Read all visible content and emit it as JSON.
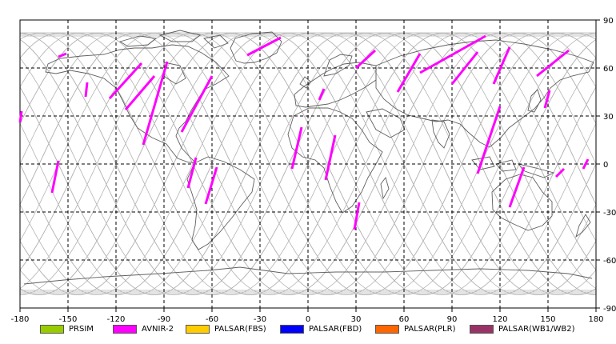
{
  "x_ticks": [
    -180,
    -150,
    -120,
    -90,
    -60,
    -30,
    0,
    30,
    60,
    90,
    120,
    150,
    180
  ],
  "y_ticks": [
    90,
    60,
    30,
    0,
    -30,
    -60,
    -90
  ],
  "colors": {
    "grid": "#000000",
    "orbit": "#b4b4b4",
    "coast": "#606060",
    "swath": "#ff00ff"
  },
  "legend": [
    {
      "label": "PRSIM",
      "color": "#99cc00"
    },
    {
      "label": "AVNIR-2",
      "color": "#ff00ff"
    },
    {
      "label": "PALSAR(FBS)",
      "color": "#ffcc00"
    },
    {
      "label": "PALSAR(FBD)",
      "color": "#0000ff"
    },
    {
      "label": "PALSAR(PLR)",
      "color": "#ff6600"
    },
    {
      "label": "PALSAR(WB1/WB2)",
      "color": "#993366"
    }
  ],
  "swaths": [
    [
      [
        -156,
        67
      ],
      [
        -151,
        69
      ]
    ],
    [
      [
        -180,
        26
      ],
      [
        -179,
        33
      ]
    ],
    [
      [
        -160,
        -18
      ],
      [
        -156,
        2
      ]
    ],
    [
      [
        -139,
        42
      ],
      [
        -138,
        51
      ]
    ],
    [
      [
        -124,
        41
      ],
      [
        -104,
        63
      ]
    ],
    [
      [
        -114,
        34
      ],
      [
        -96,
        55
      ]
    ],
    [
      [
        -103,
        12
      ],
      [
        -88,
        64
      ]
    ],
    [
      [
        -79,
        20
      ],
      [
        -60,
        55
      ]
    ],
    [
      [
        -75,
        -15
      ],
      [
        -70,
        4
      ]
    ],
    [
      [
        -64,
        -25
      ],
      [
        -57,
        -2
      ]
    ],
    [
      [
        -38,
        68
      ],
      [
        -17,
        79
      ]
    ],
    [
      [
        -10,
        -3
      ],
      [
        -4,
        23
      ]
    ],
    [
      [
        7,
        40
      ],
      [
        10,
        47
      ]
    ],
    [
      [
        11,
        -10
      ],
      [
        17,
        18
      ]
    ],
    [
      [
        29,
        -41
      ],
      [
        32,
        -24
      ]
    ],
    [
      [
        30,
        60
      ],
      [
        42,
        71
      ]
    ],
    [
      [
        56,
        45
      ],
      [
        70,
        69
      ]
    ],
    [
      [
        70,
        57
      ],
      [
        111,
        80
      ]
    ],
    [
      [
        90,
        50
      ],
      [
        106,
        70
      ]
    ],
    [
      [
        106,
        -6
      ],
      [
        120,
        36
      ]
    ],
    [
      [
        116,
        50
      ],
      [
        126,
        73
      ]
    ],
    [
      [
        126,
        -27
      ],
      [
        135,
        -2
      ]
    ],
    [
      [
        143,
        55
      ],
      [
        163,
        71
      ]
    ],
    [
      [
        148,
        35
      ],
      [
        151,
        46
      ]
    ],
    [
      [
        155,
        -8
      ],
      [
        160,
        -3
      ]
    ],
    [
      [
        172,
        -3
      ],
      [
        175,
        3
      ]
    ]
  ]
}
